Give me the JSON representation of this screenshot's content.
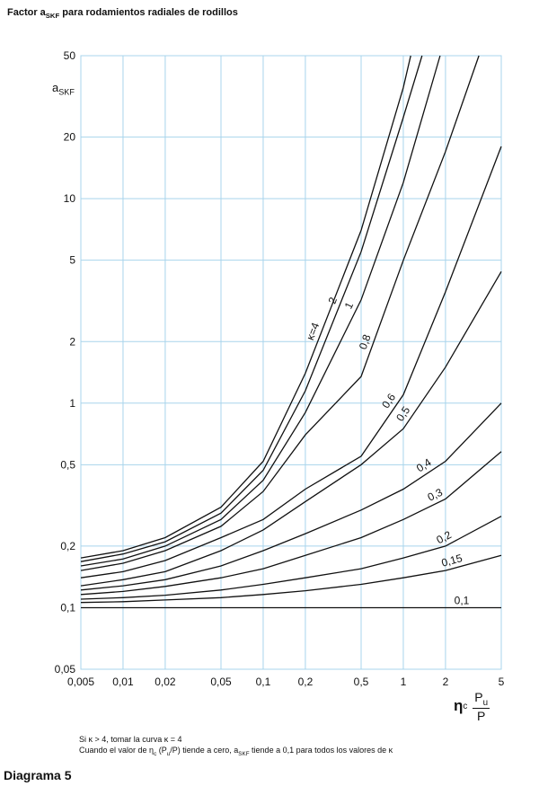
{
  "chart_data": {
    "type": "line",
    "title_parts": [
      "Factor a",
      "SKF",
      " para rodamientos radiales de rodillos"
    ],
    "ylabel_parts": [
      "a",
      "SKF"
    ],
    "xlabel_parts": [
      "η",
      "c",
      "P",
      "u",
      "P"
    ],
    "xscale": "log",
    "yscale": "log",
    "xlim": [
      0.005,
      5
    ],
    "ylim": [
      0.05,
      50
    ],
    "xticks": [
      {
        "value": 0.005,
        "label": "0,005"
      },
      {
        "value": 0.01,
        "label": "0,01"
      },
      {
        "value": 0.02,
        "label": "0,02"
      },
      {
        "value": 0.05,
        "label": "0,05"
      },
      {
        "value": 0.1,
        "label": "0,1"
      },
      {
        "value": 0.2,
        "label": "0,2"
      },
      {
        "value": 0.5,
        "label": "0,5"
      },
      1,
      2,
      5
    ],
    "yticks": [
      {
        "value": 0.05,
        "label": "0,05"
      },
      {
        "value": 0.1,
        "label": "0,1"
      },
      {
        "value": 0.2,
        "label": "0,2"
      },
      {
        "value": 0.5,
        "label": "0,5"
      },
      1,
      2,
      5,
      10,
      20,
      50
    ],
    "grid": true,
    "grid_color": "#a8d4ec",
    "series": [
      {
        "name": "κ=4",
        "color": "#111111",
        "x": [
          0.005,
          0.01,
          0.02,
          0.05,
          0.1,
          0.2,
          0.5,
          1,
          1.13
        ],
        "values": [
          0.175,
          0.19,
          0.22,
          0.31,
          0.52,
          1.4,
          7,
          35,
          50
        ]
      },
      {
        "name": "2",
        "color": "#111111",
        "x": [
          0.005,
          0.01,
          0.02,
          0.05,
          0.1,
          0.2,
          0.5,
          1,
          1.36
        ],
        "values": [
          0.168,
          0.183,
          0.21,
          0.29,
          0.47,
          1.15,
          5.5,
          25,
          50
        ]
      },
      {
        "name": "1",
        "color": "#111111",
        "x": [
          0.005,
          0.01,
          0.02,
          0.05,
          0.1,
          0.2,
          0.5,
          1,
          1.83
        ],
        "values": [
          0.16,
          0.173,
          0.2,
          0.27,
          0.42,
          0.9,
          3.2,
          12,
          50
        ]
      },
      {
        "name": "0,8",
        "color": "#111111",
        "x": [
          0.005,
          0.01,
          0.02,
          0.05,
          0.1,
          0.2,
          0.5,
          1,
          2,
          3.46
        ],
        "values": [
          0.152,
          0.165,
          0.19,
          0.25,
          0.37,
          0.7,
          1.35,
          5,
          17,
          50
        ]
      },
      {
        "name": "0,6",
        "color": "#111111",
        "x": [
          0.005,
          0.01,
          0.02,
          0.05,
          0.1,
          0.2,
          0.5,
          1,
          2,
          5
        ],
        "values": [
          0.14,
          0.15,
          0.17,
          0.22,
          0.27,
          0.38,
          0.55,
          1.1,
          3.5,
          18
        ]
      },
      {
        "name": "0,5",
        "color": "#111111",
        "x": [
          0.005,
          0.01,
          0.02,
          0.05,
          0.1,
          0.2,
          0.5,
          1,
          2,
          5
        ],
        "values": [
          0.128,
          0.137,
          0.15,
          0.19,
          0.24,
          0.33,
          0.5,
          0.75,
          1.5,
          4.4
        ]
      },
      {
        "name": "0,4",
        "color": "#111111",
        "x": [
          0.005,
          0.01,
          0.02,
          0.05,
          0.1,
          0.2,
          0.5,
          1,
          2,
          5
        ],
        "values": [
          0.122,
          0.128,
          0.137,
          0.16,
          0.19,
          0.23,
          0.3,
          0.38,
          0.52,
          1
        ]
      },
      {
        "name": "0,3",
        "color": "#111111",
        "x": [
          0.005,
          0.01,
          0.02,
          0.05,
          0.1,
          0.2,
          0.5,
          1,
          2,
          5
        ],
        "values": [
          0.116,
          0.12,
          0.127,
          0.14,
          0.155,
          0.18,
          0.22,
          0.27,
          0.34,
          0.58
        ]
      },
      {
        "name": "0,2",
        "color": "#111111",
        "x": [
          0.005,
          0.01,
          0.02,
          0.05,
          0.1,
          0.2,
          0.5,
          1,
          2,
          5
        ],
        "values": [
          0.11,
          0.112,
          0.115,
          0.122,
          0.13,
          0.14,
          0.155,
          0.175,
          0.2,
          0.28
        ]
      },
      {
        "name": "0,15",
        "color": "#111111",
        "x": [
          0.005,
          0.01,
          0.02,
          0.05,
          0.1,
          0.2,
          0.5,
          1,
          2,
          5
        ],
        "values": [
          0.106,
          0.107,
          0.109,
          0.112,
          0.116,
          0.121,
          0.13,
          0.14,
          0.152,
          0.18
        ]
      },
      {
        "name": "0,1",
        "color": "#111111",
        "x": [
          0.005,
          5
        ],
        "values": [
          0.1,
          0.1
        ]
      }
    ]
  },
  "notes": {
    "line1": "Si κ > 4, tomar la curva κ = 4",
    "line2": [
      "Cuando el valor de η",
      "c",
      " (P",
      "u",
      "/P) tiende a cero, a",
      "SKF",
      " tiende a 0,1 para todos los valores de κ"
    ]
  },
  "footer": "Diagrama 5"
}
